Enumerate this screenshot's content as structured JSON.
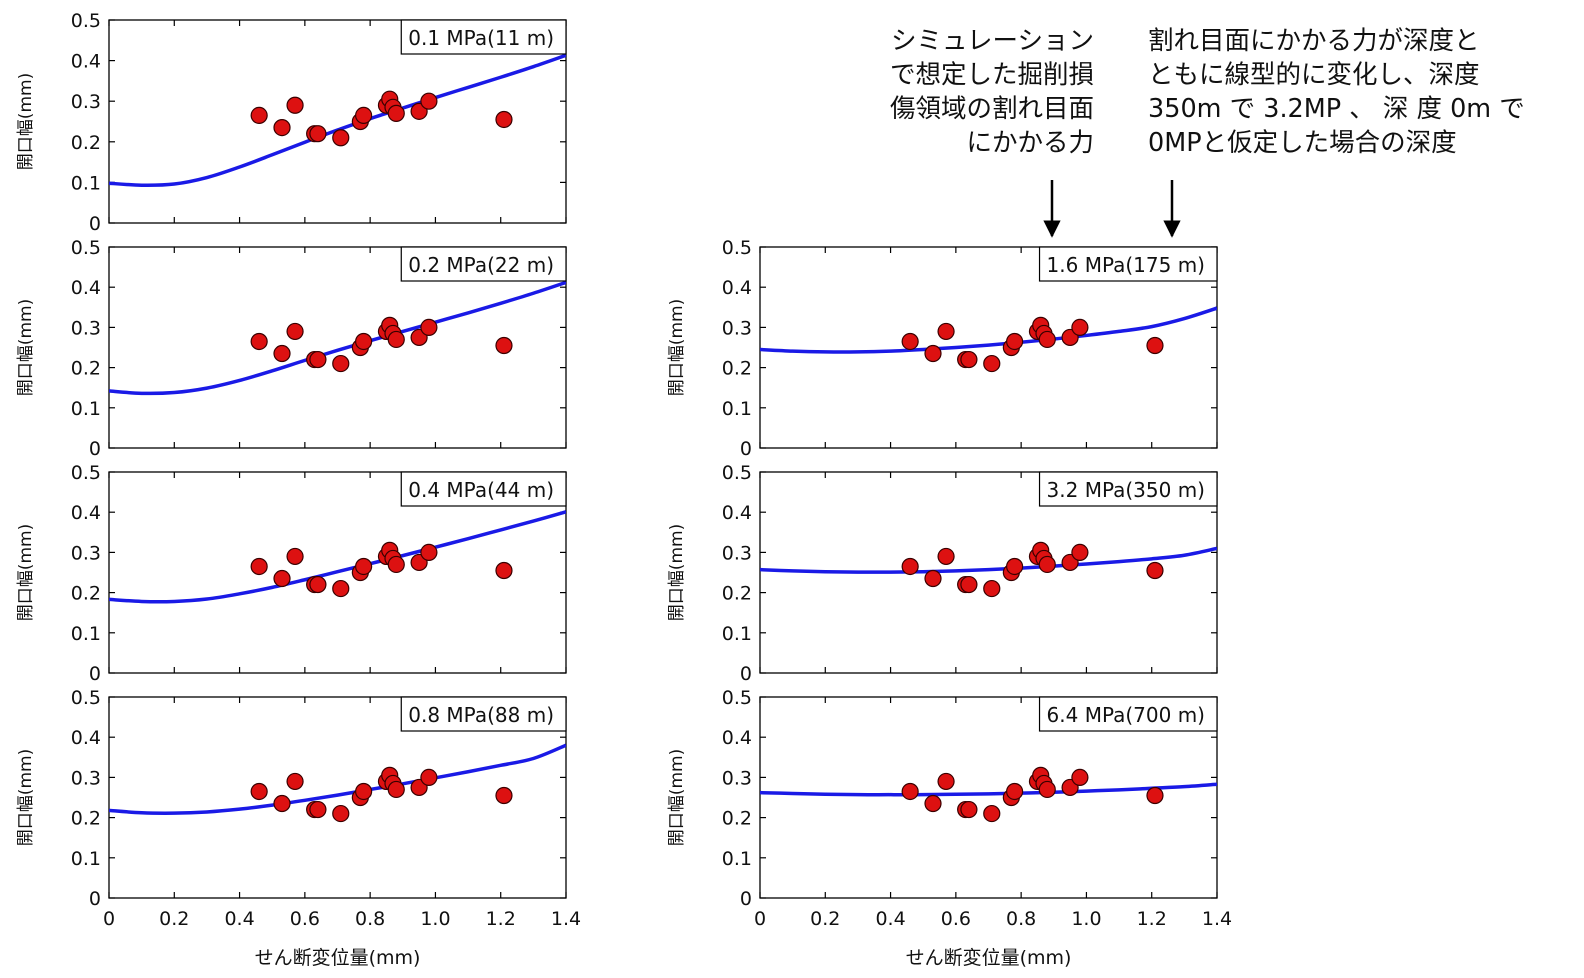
{
  "annotations": {
    "left_lines": [
      "シミュレーション",
      "で想定した掘削損",
      "傷領域の割れ目面",
      "にかかる力"
    ],
    "right_lines": [
      "割れ目面にかかる力が深度と",
      "ともに線型的に変化し、深度",
      "350m で 3.2MP 、 深 度 0m で",
      "0MPと仮定した場合の深度"
    ]
  },
  "colors": {
    "curve": "#1a1ae6",
    "marker_fill": "#dd1111",
    "marker_stroke": "#3a0000",
    "axis": "#000000"
  },
  "chart_data": [
    {
      "type": "scatter",
      "label": "0.1 MPa(11 m)",
      "xlabel": "",
      "ylabel": "開口幅(mm)",
      "xlim": [
        0,
        1.4
      ],
      "ylim": [
        0,
        0.5
      ],
      "xticks": [],
      "yticks": [
        "0",
        "0.1",
        "0.2",
        "0.3",
        "0.4",
        "0.5"
      ],
      "series": [
        {
          "kind": "points",
          "x": [
            0.46,
            0.53,
            0.57,
            0.63,
            0.64,
            0.71,
            0.77,
            0.78,
            0.85,
            0.86,
            0.87,
            0.88,
            0.95,
            0.98,
            1.21
          ],
          "y": [
            0.265,
            0.235,
            0.29,
            0.22,
            0.22,
            0.21,
            0.25,
            0.265,
            0.29,
            0.305,
            0.285,
            0.27,
            0.275,
            0.3,
            0.255
          ]
        },
        {
          "kind": "curve",
          "x": [
            0,
            0.1,
            0.2,
            0.3,
            0.4,
            0.5,
            0.6,
            0.7,
            0.8,
            0.9,
            1.0,
            1.1,
            1.2,
            1.3,
            1.4
          ],
          "y": [
            0.098,
            0.093,
            0.096,
            0.112,
            0.138,
            0.168,
            0.199,
            0.229,
            0.257,
            0.283,
            0.309,
            0.334,
            0.359,
            0.385,
            0.413
          ]
        }
      ]
    },
    {
      "type": "scatter",
      "label": "0.2 MPa(22 m)",
      "xlabel": "",
      "ylabel": "開口幅(mm)",
      "xlim": [
        0,
        1.4
      ],
      "ylim": [
        0,
        0.5
      ],
      "xticks": [],
      "yticks": [
        "0",
        "0.1",
        "0.2",
        "0.3",
        "0.4",
        "0.5"
      ],
      "series": [
        {
          "kind": "points",
          "x": [
            0.46,
            0.53,
            0.57,
            0.63,
            0.64,
            0.71,
            0.77,
            0.78,
            0.85,
            0.86,
            0.87,
            0.88,
            0.95,
            0.98,
            1.21
          ],
          "y": [
            0.265,
            0.235,
            0.29,
            0.22,
            0.22,
            0.21,
            0.25,
            0.265,
            0.29,
            0.305,
            0.285,
            0.27,
            0.275,
            0.3,
            0.255
          ]
        },
        {
          "kind": "curve",
          "x": [
            0,
            0.1,
            0.2,
            0.3,
            0.4,
            0.5,
            0.6,
            0.7,
            0.8,
            0.9,
            1.0,
            1.1,
            1.2,
            1.3,
            1.4
          ],
          "y": [
            0.142,
            0.136,
            0.138,
            0.149,
            0.168,
            0.192,
            0.218,
            0.243,
            0.267,
            0.29,
            0.313,
            0.336,
            0.36,
            0.385,
            0.412
          ]
        }
      ]
    },
    {
      "type": "scatter",
      "label": "0.4 MPa(44 m)",
      "xlabel": "",
      "ylabel": "開口幅(mm)",
      "xlim": [
        0,
        1.4
      ],
      "ylim": [
        0,
        0.5
      ],
      "xticks": [],
      "yticks": [
        "0",
        "0.1",
        "0.2",
        "0.3",
        "0.4",
        "0.5"
      ],
      "series": [
        {
          "kind": "points",
          "x": [
            0.46,
            0.53,
            0.57,
            0.63,
            0.64,
            0.71,
            0.77,
            0.78,
            0.85,
            0.86,
            0.87,
            0.88,
            0.95,
            0.98,
            1.21
          ],
          "y": [
            0.265,
            0.235,
            0.29,
            0.22,
            0.22,
            0.21,
            0.25,
            0.265,
            0.29,
            0.305,
            0.285,
            0.27,
            0.275,
            0.3,
            0.255
          ]
        },
        {
          "kind": "curve",
          "x": [
            0,
            0.1,
            0.2,
            0.3,
            0.4,
            0.5,
            0.6,
            0.7,
            0.8,
            0.9,
            1.0,
            1.1,
            1.2,
            1.3,
            1.4
          ],
          "y": [
            0.183,
            0.178,
            0.178,
            0.184,
            0.197,
            0.213,
            0.232,
            0.252,
            0.272,
            0.292,
            0.313,
            0.334,
            0.356,
            0.378,
            0.401
          ]
        }
      ]
    },
    {
      "type": "scatter",
      "label": "0.8 MPa(88 m)",
      "xlabel": "せん断変位量(mm)",
      "ylabel": "開口幅(mm)",
      "xlim": [
        0,
        1.4
      ],
      "ylim": [
        0,
        0.5
      ],
      "xticks": [
        "0",
        "0.2",
        "0.4",
        "0.6",
        "0.8",
        "1.0",
        "1.2",
        "1.4"
      ],
      "yticks": [
        "0",
        "0.1",
        "0.2",
        "0.3",
        "0.4",
        "0.5"
      ],
      "series": [
        {
          "kind": "points",
          "x": [
            0.46,
            0.53,
            0.57,
            0.63,
            0.64,
            0.71,
            0.77,
            0.78,
            0.85,
            0.86,
            0.87,
            0.88,
            0.95,
            0.98,
            1.21
          ],
          "y": [
            0.265,
            0.235,
            0.29,
            0.22,
            0.22,
            0.21,
            0.25,
            0.265,
            0.29,
            0.305,
            0.285,
            0.27,
            0.275,
            0.3,
            0.255
          ]
        },
        {
          "kind": "curve",
          "x": [
            0,
            0.1,
            0.2,
            0.3,
            0.4,
            0.5,
            0.6,
            0.7,
            0.8,
            0.9,
            1.0,
            1.1,
            1.2,
            1.3,
            1.4
          ],
          "y": [
            0.218,
            0.212,
            0.211,
            0.214,
            0.221,
            0.231,
            0.243,
            0.256,
            0.27,
            0.284,
            0.299,
            0.314,
            0.33,
            0.347,
            0.38
          ]
        }
      ]
    },
    {
      "type": "scatter",
      "label": "1.6 MPa(175 m)",
      "xlabel": "",
      "ylabel": "開口幅(mm)",
      "xlim": [
        0,
        1.4
      ],
      "ylim": [
        0,
        0.5
      ],
      "xticks": [],
      "yticks": [
        "0",
        "0.1",
        "0.2",
        "0.3",
        "0.4",
        "0.5"
      ],
      "series": [
        {
          "kind": "points",
          "x": [
            0.46,
            0.53,
            0.57,
            0.63,
            0.64,
            0.71,
            0.77,
            0.78,
            0.85,
            0.86,
            0.87,
            0.88,
            0.95,
            0.98,
            1.21
          ],
          "y": [
            0.265,
            0.235,
            0.29,
            0.22,
            0.22,
            0.21,
            0.25,
            0.265,
            0.29,
            0.305,
            0.285,
            0.27,
            0.275,
            0.3,
            0.255
          ]
        },
        {
          "kind": "curve",
          "x": [
            0,
            0.1,
            0.2,
            0.3,
            0.4,
            0.5,
            0.6,
            0.7,
            0.8,
            0.9,
            1.0,
            1.1,
            1.2,
            1.3,
            1.4
          ],
          "y": [
            0.245,
            0.241,
            0.239,
            0.239,
            0.241,
            0.245,
            0.25,
            0.256,
            0.263,
            0.271,
            0.28,
            0.29,
            0.302,
            0.322,
            0.348
          ]
        }
      ]
    },
    {
      "type": "scatter",
      "label": "3.2 MPa(350 m)",
      "xlabel": "",
      "ylabel": "開口幅(mm)",
      "xlim": [
        0,
        1.4
      ],
      "ylim": [
        0,
        0.5
      ],
      "xticks": [],
      "yticks": [
        "0",
        "0.1",
        "0.2",
        "0.3",
        "0.4",
        "0.5"
      ],
      "series": [
        {
          "kind": "points",
          "x": [
            0.46,
            0.53,
            0.57,
            0.63,
            0.64,
            0.71,
            0.77,
            0.78,
            0.85,
            0.86,
            0.87,
            0.88,
            0.95,
            0.98,
            1.21
          ],
          "y": [
            0.265,
            0.235,
            0.29,
            0.22,
            0.22,
            0.21,
            0.25,
            0.265,
            0.29,
            0.305,
            0.285,
            0.27,
            0.275,
            0.3,
            0.255
          ]
        },
        {
          "kind": "curve",
          "x": [
            0,
            0.1,
            0.2,
            0.3,
            0.4,
            0.5,
            0.6,
            0.7,
            0.8,
            0.9,
            1.0,
            1.1,
            1.2,
            1.3,
            1.4
          ],
          "y": [
            0.257,
            0.254,
            0.252,
            0.251,
            0.251,
            0.252,
            0.254,
            0.257,
            0.261,
            0.266,
            0.271,
            0.277,
            0.284,
            0.293,
            0.31
          ]
        }
      ]
    },
    {
      "type": "scatter",
      "label": "6.4 MPa(700 m)",
      "xlabel": "せん断変位量(mm)",
      "ylabel": "開口幅(mm)",
      "xlim": [
        0,
        1.4
      ],
      "ylim": [
        0,
        0.5
      ],
      "xticks": [
        "0",
        "0.2",
        "0.4",
        "0.6",
        "0.8",
        "1.0",
        "1.2",
        "1.4"
      ],
      "yticks": [
        "0",
        "0.1",
        "0.2",
        "0.3",
        "0.4",
        "0.5"
      ],
      "series": [
        {
          "kind": "points",
          "x": [
            0.46,
            0.53,
            0.57,
            0.63,
            0.64,
            0.71,
            0.77,
            0.78,
            0.85,
            0.86,
            0.87,
            0.88,
            0.95,
            0.98,
            1.21
          ],
          "y": [
            0.265,
            0.235,
            0.29,
            0.22,
            0.22,
            0.21,
            0.25,
            0.265,
            0.29,
            0.305,
            0.285,
            0.27,
            0.275,
            0.3,
            0.255
          ]
        },
        {
          "kind": "curve",
          "x": [
            0,
            0.1,
            0.2,
            0.3,
            0.4,
            0.5,
            0.6,
            0.7,
            0.8,
            0.9,
            1.0,
            1.1,
            1.2,
            1.3,
            1.4
          ],
          "y": [
            0.262,
            0.26,
            0.258,
            0.257,
            0.257,
            0.257,
            0.258,
            0.259,
            0.261,
            0.263,
            0.266,
            0.269,
            0.273,
            0.277,
            0.283
          ]
        }
      ]
    }
  ]
}
